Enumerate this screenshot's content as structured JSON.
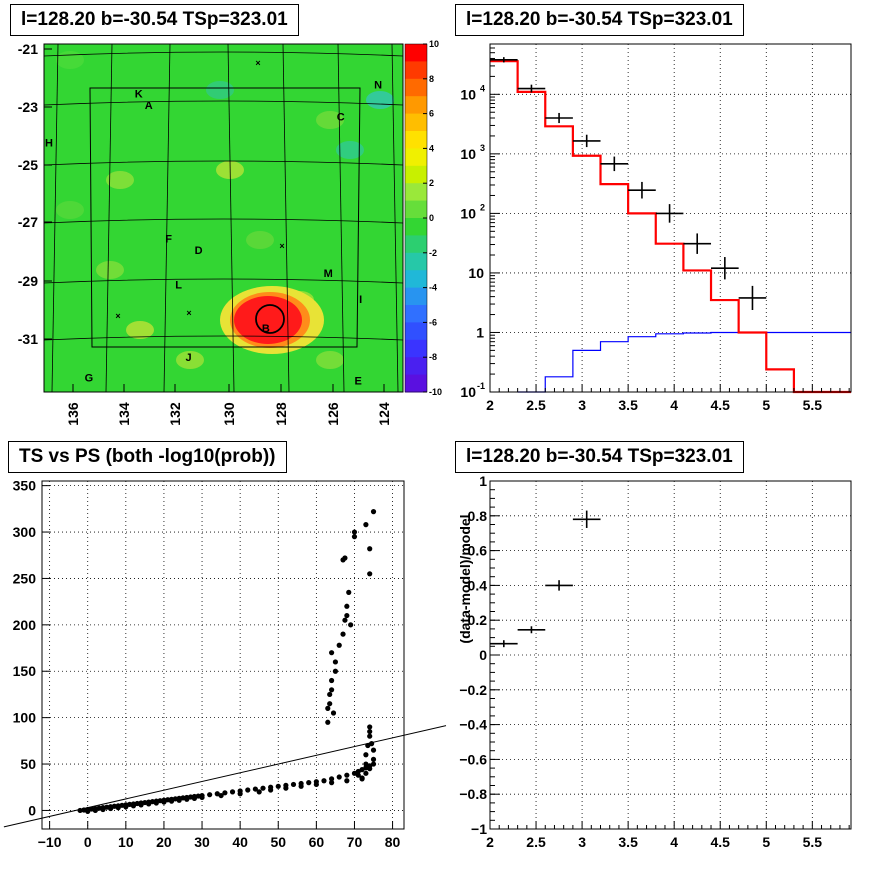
{
  "chart_data": [
    {
      "type": "heatmap",
      "title": "l=128.20 b=-30.54 TSp=323.01",
      "x_ticks": [
        "136",
        "134",
        "132",
        "130",
        "128",
        "126",
        "124"
      ],
      "y_ticks": [
        "-21",
        "-23",
        "-25",
        "-27",
        "-29",
        "-31"
      ],
      "color_scale": {
        "min": -10,
        "max": 10,
        "ticks": [
          "10",
          "8",
          "6",
          "4",
          "2",
          "0",
          "-2",
          "-4",
          "-6",
          "-8",
          "-10"
        ]
      },
      "source_labels": [
        {
          "text": "N",
          "l": 123.7,
          "b": -22.2
        },
        {
          "text": "K",
          "l": 133.3,
          "b": -22.5
        },
        {
          "text": "A",
          "l": 132.9,
          "b": -22.9
        },
        {
          "text": "C",
          "l": 125.2,
          "b": -23.3
        },
        {
          "text": "H",
          "l": 136.9,
          "b": -24.2
        },
        {
          "text": "F",
          "l": 132.1,
          "b": -27.5
        },
        {
          "text": "D",
          "l": 130.9,
          "b": -27.9
        },
        {
          "text": "M",
          "l": 125.7,
          "b": -28.7
        },
        {
          "text": "L",
          "l": 131.7,
          "b": -29.1
        },
        {
          "text": "I",
          "l": 124.4,
          "b": -29.6
        },
        {
          "text": "B",
          "l": 128.2,
          "b": -30.6
        },
        {
          "text": "J",
          "l": 131.3,
          "b": -31.6
        },
        {
          "text": "G",
          "l": 135.3,
          "b": -32.3
        },
        {
          "text": "E",
          "l": 124.5,
          "b": -32.4
        }
      ],
      "colors": {
        "background": "#33d633",
        "hotspot": "#ff1a1a"
      }
    },
    {
      "type": "line",
      "title": "l=128.20 b=-30.54 TSp=323.01",
      "x_ticks": [
        "2",
        "2.5",
        "3",
        "3.5",
        "4",
        "4.5",
        "5",
        "5.5"
      ],
      "y_ticks": [
        "10^-1",
        "1",
        "10",
        "10^2",
        "10^3",
        "10^4"
      ],
      "xlim": [
        2,
        5.92
      ],
      "ylog": true,
      "ylim": [
        0.1,
        70000
      ],
      "data_points": [
        {
          "x": 2.15,
          "y": 38000,
          "xerr": 0.15
        },
        {
          "x": 2.45,
          "y": 12500,
          "xerr": 0.15
        },
        {
          "x": 2.75,
          "y": 4000,
          "xerr": 0.15
        },
        {
          "x": 3.05,
          "y": 1650,
          "xerr": 0.15
        },
        {
          "x": 3.35,
          "y": 680,
          "xerr": 0.15
        },
        {
          "x": 3.65,
          "y": 245,
          "xerr": 0.15
        },
        {
          "x": 3.95,
          "y": 100,
          "xerr": 0.15
        },
        {
          "x": 4.25,
          "y": 31,
          "xerr": 0.15
        },
        {
          "x": 4.55,
          "y": 12,
          "xerr": 0.15
        },
        {
          "x": 4.85,
          "y": 3.8,
          "xerr": 0.15
        }
      ],
      "model_steps": {
        "edges": [
          2,
          2.3,
          2.6,
          2.9,
          3.2,
          3.5,
          3.8,
          4.1,
          4.4,
          4.7,
          5.0,
          5.3,
          5.92
        ],
        "values": [
          36000,
          11000,
          2900,
          930,
          310,
          100,
          31,
          11,
          3.5,
          1.0,
          0.24,
          0.1
        ],
        "color": "#ff0000"
      },
      "ps_steps": {
        "edges": [
          2.3,
          2.6,
          2.9,
          3.2,
          3.5,
          3.8,
          4.1,
          4.4,
          4.7,
          5.0,
          5.3,
          5.92
        ],
        "values": [
          0.1,
          0.18,
          0.5,
          0.7,
          0.85,
          0.95,
          0.98,
          1.0,
          1.0,
          1.0,
          1.0
        ],
        "color": "#0000ff"
      },
      "grid": true
    },
    {
      "type": "scatter",
      "title": "TS vs PS (both -log10(prob))",
      "x_ticks": [
        "-10",
        "0",
        "10",
        "20",
        "30",
        "40",
        "50",
        "60",
        "70",
        "80"
      ],
      "y_ticks": [
        "0",
        "50",
        "100",
        "150",
        "200",
        "250",
        "300",
        "350"
      ],
      "xlim": [
        -12,
        83
      ],
      "ylim": [
        -20,
        355
      ],
      "line": {
        "slope": 0.94,
        "intercept": 3
      },
      "points": [
        [
          -2,
          0
        ],
        [
          -1,
          0.5
        ],
        [
          0,
          1
        ],
        [
          1,
          1.5
        ],
        [
          2,
          2
        ],
        [
          3,
          2.5
        ],
        [
          4,
          3
        ],
        [
          5,
          3.5
        ],
        [
          6,
          4
        ],
        [
          7,
          4.5
        ],
        [
          8,
          5
        ],
        [
          9,
          5.5
        ],
        [
          10,
          6
        ],
        [
          11,
          6.5
        ],
        [
          12,
          7
        ],
        [
          13,
          7.5
        ],
        [
          14,
          8
        ],
        [
          15,
          8.5
        ],
        [
          16,
          9
        ],
        [
          17,
          9.5
        ],
        [
          18,
          10
        ],
        [
          19,
          10.5
        ],
        [
          20,
          11
        ],
        [
          21,
          11.5
        ],
        [
          22,
          12
        ],
        [
          23,
          12.5
        ],
        [
          24,
          13
        ],
        [
          25,
          13.5
        ],
        [
          26,
          14
        ],
        [
          27,
          14.5
        ],
        [
          28,
          15
        ],
        [
          29,
          15.5
        ],
        [
          30,
          16
        ],
        [
          32,
          17
        ],
        [
          34,
          18
        ],
        [
          36,
          19
        ],
        [
          38,
          20
        ],
        [
          40,
          21
        ],
        [
          42,
          22
        ],
        [
          44,
          23
        ],
        [
          46,
          24
        ],
        [
          48,
          25
        ],
        [
          50,
          26
        ],
        [
          52,
          27
        ],
        [
          54,
          28
        ],
        [
          56,
          29
        ],
        [
          58,
          30
        ],
        [
          60,
          31
        ],
        [
          62,
          32
        ],
        [
          64,
          34
        ],
        [
          66,
          36
        ],
        [
          68,
          38
        ],
        [
          70,
          40
        ],
        [
          71,
          42
        ],
        [
          72,
          44
        ],
        [
          73,
          46
        ],
        [
          74,
          48
        ],
        [
          75,
          50
        ],
        [
          0,
          -1
        ],
        [
          2,
          0
        ],
        [
          4,
          1
        ],
        [
          6,
          2
        ],
        [
          8,
          3
        ],
        [
          10,
          4
        ],
        [
          12,
          5
        ],
        [
          14,
          6
        ],
        [
          16,
          7
        ],
        [
          18,
          8
        ],
        [
          20,
          9
        ],
        [
          22,
          10
        ],
        [
          24,
          11
        ],
        [
          26,
          12
        ],
        [
          28,
          13
        ],
        [
          30,
          14
        ],
        [
          35,
          16
        ],
        [
          40,
          18
        ],
        [
          45,
          20
        ],
        [
          48,
          22
        ],
        [
          52,
          24
        ],
        [
          56,
          26
        ],
        [
          60,
          28
        ],
        [
          64,
          30
        ],
        [
          68,
          32
        ],
        [
          72,
          34
        ],
        [
          63,
          95
        ],
        [
          63,
          110
        ],
        [
          63.5,
          125
        ],
        [
          64,
          130
        ],
        [
          64,
          140
        ],
        [
          65,
          150
        ],
        [
          65,
          160
        ],
        [
          64,
          170
        ],
        [
          63.5,
          115
        ],
        [
          64.5,
          105
        ],
        [
          66,
          178
        ],
        [
          67,
          190
        ],
        [
          67.5,
          205
        ],
        [
          68,
          210
        ],
        [
          68,
          220
        ],
        [
          68.5,
          235
        ],
        [
          69,
          200
        ],
        [
          67,
          270
        ],
        [
          67.5,
          272
        ],
        [
          70,
          295
        ],
        [
          70,
          300
        ],
        [
          73,
          308
        ],
        [
          74,
          255
        ],
        [
          74,
          282
        ],
        [
          75,
          322
        ],
        [
          73,
          50
        ],
        [
          73,
          60
        ],
        [
          73.5,
          70
        ],
        [
          74,
          80
        ],
        [
          74,
          85
        ],
        [
          74.5,
          72
        ],
        [
          75,
          65
        ],
        [
          75,
          55
        ],
        [
          74,
          45
        ],
        [
          73,
          40
        ],
        [
          72,
          35
        ],
        [
          71,
          38
        ],
        [
          74,
          90
        ]
      ],
      "grid": true
    },
    {
      "type": "line",
      "title": "l=128.20 b=-30.54 TSp=323.01",
      "ylabel": "(data-model)/model",
      "x_ticks": [
        "2",
        "2.5",
        "3",
        "3.5",
        "4",
        "4.5",
        "5",
        "5.5"
      ],
      "y_ticks": [
        "1",
        "0.8",
        "0.6",
        "0.4",
        "0.2",
        "0",
        "-0.2",
        "-0.4",
        "-0.6",
        "-0.8",
        "-1"
      ],
      "xlim": [
        2,
        5.92
      ],
      "ylim": [
        -1,
        1
      ],
      "data_points": [
        {
          "x": 2.15,
          "y": 0.065,
          "xerr": 0.15,
          "yerr": 0.02
        },
        {
          "x": 2.45,
          "y": 0.145,
          "xerr": 0.15,
          "yerr": 0.02
        },
        {
          "x": 2.75,
          "y": 0.4,
          "xerr": 0.15,
          "yerr": 0.03
        },
        {
          "x": 3.05,
          "y": 0.78,
          "xerr": 0.15,
          "yerr": 0.05
        }
      ],
      "grid": true
    }
  ]
}
